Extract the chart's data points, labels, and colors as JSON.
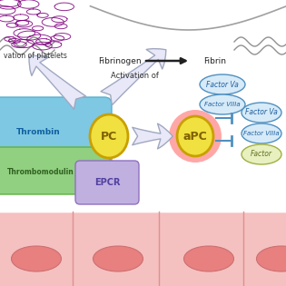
{
  "bg_color": "#ffffff",
  "cell_color": "#f5c0c0",
  "cell_oval_color": "#e88080",
  "thrombin_color": "#7ec8e3",
  "thrombomodulin_color": "#90d080",
  "epcr_color": "#c0b0e0",
  "pc_color": "#f0e040",
  "pc_border_color": "#c8a000",
  "apc_glow_color": "#ff6060",
  "apc_color": "#f0e040",
  "arrow_color": "#5090c0",
  "fibrin_arrow_color": "#202020",
  "platelet_color": "#800080",
  "white_arrow_color": "#e8e8f8",
  "white_arrow_border": "#a0a8c0",
  "text_thrombin": "Thrombin",
  "text_thrombomodulin": "Thrombomodulin",
  "text_epcr": "EPCR",
  "text_pc": "PC",
  "text_apc": "aPC",
  "text_fibrinogen": "Fibrinogen",
  "text_fibrin": "Fibrin",
  "text_factor_va": "Factor Va",
  "text_factor_viiia": "Factor VIIIa",
  "text_factor_i": "Factor",
  "text_activation_platelets": "vation of platelets",
  "text_activation_of": "Activation of"
}
